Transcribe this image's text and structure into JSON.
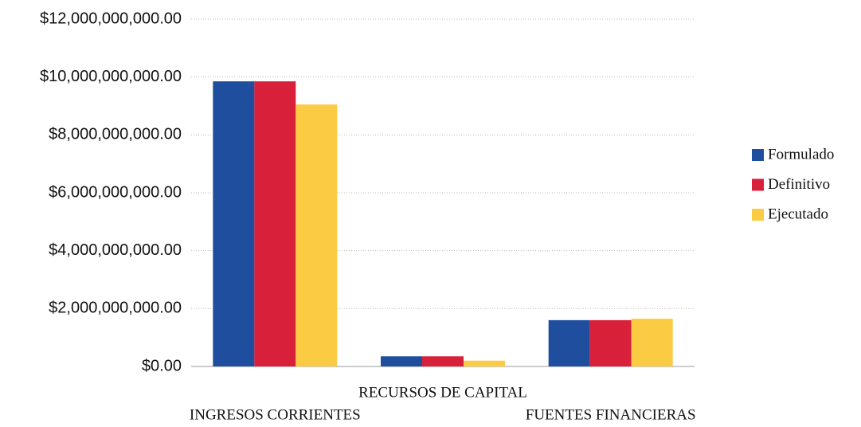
{
  "chart_data": {
    "type": "bar",
    "categories": [
      "INGRESOS CORRIENTES",
      "RECURSOS DE CAPITAL",
      "FUENTES FINANCIERAS"
    ],
    "series": [
      {
        "name": "Formulado",
        "color": "#1f4e9e",
        "values": [
          9850000000,
          350000000,
          1600000000
        ]
      },
      {
        "name": "Definitivo",
        "color": "#d9203a",
        "values": [
          9850000000,
          350000000,
          1600000000
        ]
      },
      {
        "name": "Ejecutado",
        "color": "#fbcb44",
        "values": [
          9050000000,
          200000000,
          1650000000
        ]
      }
    ],
    "ylim": [
      0,
      12000000000
    ],
    "yticks": [
      {
        "value": 0,
        "label": "$0.00"
      },
      {
        "value": 2000000000,
        "label": "$2,000,000,000.00"
      },
      {
        "value": 4000000000,
        "label": "$4,000,000,000.00"
      },
      {
        "value": 6000000000,
        "label": "$6,000,000,000.00"
      },
      {
        "value": 8000000000,
        "label": "$8,000,000,000.00"
      },
      {
        "value": 10000000000,
        "label": "$10,000,000,000.00"
      },
      {
        "value": 12000000000,
        "label": "$12,000,000,000.00"
      }
    ],
    "grid": true,
    "legend": "right"
  }
}
